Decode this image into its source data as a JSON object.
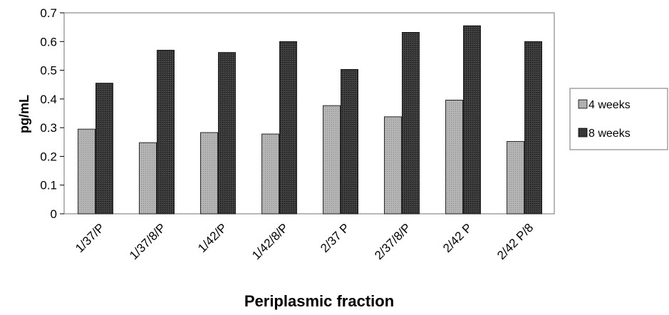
{
  "chart_data": {
    "type": "bar",
    "title": "",
    "xlabel": "Periplasmic fraction",
    "ylabel": "pg/mL",
    "ylim": [
      0,
      0.7
    ],
    "yticks": [
      "0",
      "0.1",
      "0.2",
      "0.3",
      "0.4",
      "0.5",
      "0.6",
      "0.7"
    ],
    "categories": [
      "1/37/P",
      "1/37/8/P",
      "1/42/P",
      "1/42/8/P",
      "2/37 P",
      "2/37/8/P",
      "2/42 P",
      "2/42 P/8"
    ],
    "series": [
      {
        "name": "4 weeks",
        "values": [
          0.295,
          0.248,
          0.283,
          0.278,
          0.377,
          0.338,
          0.396,
          0.252
        ],
        "color": "#a6a6a6"
      },
      {
        "name": "8 weeks",
        "values": [
          0.455,
          0.57,
          0.562,
          0.6,
          0.503,
          0.632,
          0.655,
          0.6
        ],
        "color": "#2b2b2b"
      }
    ],
    "grid": false,
    "legend": "right"
  }
}
